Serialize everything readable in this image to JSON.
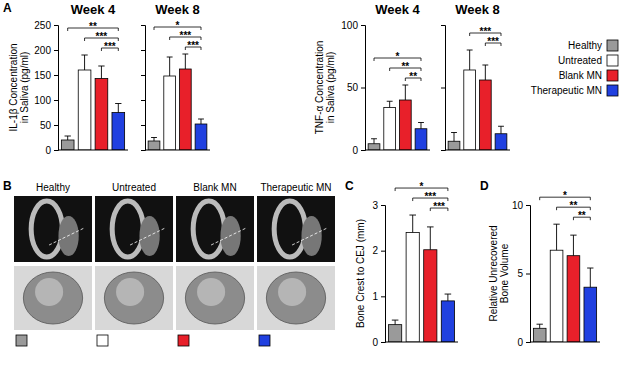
{
  "panel_labels": [
    "A",
    "B",
    "C",
    "D"
  ],
  "legend": {
    "names": [
      "Healthy",
      "Untreated",
      "Blank MN",
      "Therapeutic MN"
    ],
    "colors": [
      "#9a9a9a",
      "#ffffff",
      "#e8202a",
      "#2040e0"
    ]
  },
  "image_panel": {
    "labels": [
      "Healthy",
      "Untreated",
      "Blank MN",
      "Therapeutic MN"
    ],
    "colors": [
      "#9a9a9a",
      "#ffffff",
      "#e8202a",
      "#2040e0"
    ]
  },
  "chart_data": [
    {
      "type": "bar",
      "title": "Week 4",
      "y_label": "IL-1β Concentration\nin Saliva (pg/ml)",
      "categories": [
        null,
        null,
        null,
        null
      ],
      "values": [
        20,
        160,
        143,
        75
      ],
      "errors": [
        8,
        30,
        25,
        18
      ],
      "colors": [
        "#9a9a9a",
        "#ffffff",
        "#e8202a",
        "#2040e0"
      ],
      "ylim": [
        0,
        250
      ],
      "yticks": [
        0,
        50,
        100,
        150,
        200,
        250
      ],
      "tick_labels": "y",
      "annotations": [
        {
          "text": "**",
          "from": 0,
          "to": 3
        },
        {
          "text": "***",
          "from": 1,
          "to": 3
        },
        {
          "text": "***",
          "from": 2,
          "to": 3
        }
      ]
    },
    {
      "type": "bar",
      "title": "Week 8",
      "categories": [
        null,
        null,
        null,
        null
      ],
      "values": [
        18,
        148,
        162,
        52
      ],
      "errors": [
        7,
        38,
        30,
        10
      ],
      "colors": [
        "#9a9a9a",
        "#ffffff",
        "#e8202a",
        "#2040e0"
      ],
      "ylim": [
        0,
        250
      ],
      "yticks": [
        0,
        50,
        100,
        150,
        200,
        250
      ],
      "tick_labels": false,
      "annotations": [
        {
          "text": "*",
          "from": 0,
          "to": 3
        },
        {
          "text": "***",
          "from": 1,
          "to": 3
        },
        {
          "text": "***",
          "from": 2,
          "to": 3
        }
      ]
    },
    {
      "type": "bar",
      "title": "Week 4",
      "y_label": "TNF-α Concentration\nin Saliva (pg/ml)",
      "categories": [
        null,
        null,
        null,
        null
      ],
      "values": [
        5,
        34,
        40,
        17
      ],
      "errors": [
        4,
        5,
        12,
        5
      ],
      "colors": [
        "#9a9a9a",
        "#ffffff",
        "#e8202a",
        "#2040e0"
      ],
      "ylim": [
        0,
        100
      ],
      "yticks": [
        0,
        50,
        100
      ],
      "tick_labels": "y",
      "annotations": [
        {
          "text": "*",
          "from": 0,
          "to": 3
        },
        {
          "text": "**",
          "from": 1,
          "to": 3
        },
        {
          "text": "**",
          "from": 2,
          "to": 3
        }
      ]
    },
    {
      "type": "bar",
      "title": "Week 8",
      "categories": [
        null,
        null,
        null,
        null
      ],
      "values": [
        7,
        64,
        56,
        13
      ],
      "errors": [
        7,
        16,
        12,
        6
      ],
      "colors": [
        "#9a9a9a",
        "#ffffff",
        "#e8202a",
        "#2040e0"
      ],
      "ylim": [
        0,
        100
      ],
      "yticks": [
        0,
        50,
        100
      ],
      "tick_labels": false,
      "annotations": [
        {
          "text": "***",
          "from": 1,
          "to": 3
        },
        {
          "text": "***",
          "from": 2,
          "to": 3
        }
      ]
    },
    {
      "type": "bar",
      "y_label": "Bone Crest to CEJ (mm)",
      "categories": [
        null,
        null,
        null,
        null
      ],
      "values": [
        0.38,
        2.4,
        2.02,
        0.9
      ],
      "errors": [
        0.1,
        0.38,
        0.5,
        0.15
      ],
      "colors": [
        "#9a9a9a",
        "#ffffff",
        "#e8202a",
        "#2040e0"
      ],
      "ylim": [
        0,
        3
      ],
      "yticks": [
        0,
        1,
        2,
        3
      ],
      "tick_labels": "y",
      "annotations": [
        {
          "text": "*",
          "from": 0,
          "to": 3
        },
        {
          "text": "***",
          "from": 1,
          "to": 3
        },
        {
          "text": "***",
          "from": 2,
          "to": 3
        }
      ]
    },
    {
      "type": "bar",
      "y_label": "Relative Unrecovered\nBone Volume",
      "categories": [
        null,
        null,
        null,
        null
      ],
      "values": [
        1,
        6.7,
        6.3,
        4.0
      ],
      "errors": [
        0.3,
        1.9,
        1.5,
        1.4
      ],
      "colors": [
        "#9a9a9a",
        "#ffffff",
        "#e8202a",
        "#2040e0"
      ],
      "ylim": [
        0,
        10
      ],
      "yticks": [
        0,
        5,
        10
      ],
      "tick_labels": "y",
      "annotations": [
        {
          "text": "*",
          "from": 0,
          "to": 3
        },
        {
          "text": "**",
          "from": 1,
          "to": 3
        },
        {
          "text": "**",
          "from": 2,
          "to": 3
        }
      ]
    }
  ]
}
